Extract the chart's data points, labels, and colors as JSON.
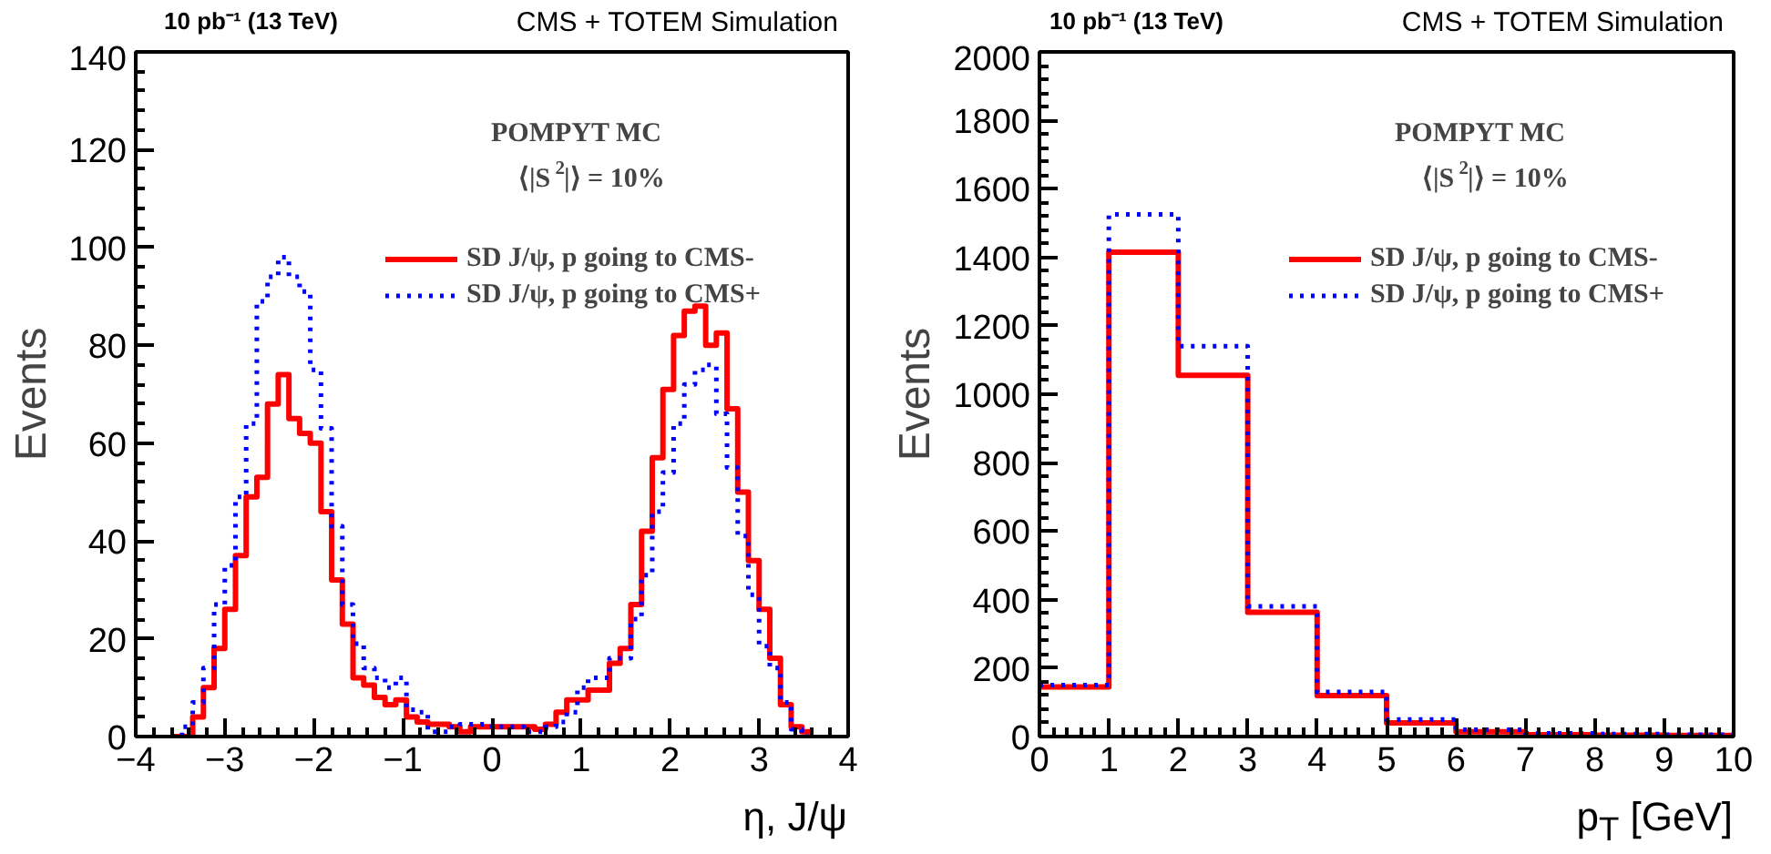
{
  "chart_data": [
    {
      "type": "histogram",
      "title": "10 pb⁻¹ (13 TeV)",
      "subtitle": "CMS + TOTEM Simulation",
      "xlabel": "η, J/ψ",
      "ylabel": "Events",
      "legend_title": "POMPYT MC",
      "annotations": [
        "⟨|S$^{2}$|⟩ = 10%"
      ],
      "bins": [
        -3.6,
        -3.48,
        -3.36,
        -3.24,
        -3.12,
        -3.0,
        -2.88,
        -2.76,
        -2.64,
        -2.52,
        -2.4,
        -2.28,
        -2.16,
        -2.04,
        -1.92,
        -1.8,
        -1.68,
        -1.56,
        -1.44,
        -1.32,
        -1.2,
        -1.08,
        -0.96,
        -0.84,
        -0.72,
        -0.6,
        -0.48,
        -0.36,
        -0.24,
        -0.12,
        0,
        0.12,
        0.24,
        0.36,
        0.48,
        0.6,
        0.72,
        0.84,
        0.96,
        1.08,
        1.2,
        1.32,
        1.44,
        1.56,
        1.68,
        1.8,
        1.92,
        2.04,
        2.16,
        2.28,
        2.4,
        2.52,
        2.64,
        2.76,
        2.88,
        3.0,
        3.12,
        3.24,
        3.36,
        3.48,
        3.6
      ],
      "series": [
        {
          "name": "SD J/ψ, p going to CMS-",
          "color": "#ff0000",
          "line_style": "solid",
          "values": [
            0,
            0,
            4,
            10,
            18,
            26,
            37,
            49,
            53,
            68,
            74,
            65,
            62,
            60,
            46,
            32,
            23,
            12,
            10.5,
            8,
            6.5,
            7.5,
            4,
            3,
            2.5,
            2.5,
            2,
            1,
            2,
            2,
            2,
            2,
            2,
            2,
            1.5,
            2.5,
            5,
            7.5,
            7.5,
            9.5,
            9.5,
            15,
            18,
            27,
            42,
            57,
            71,
            82,
            87,
            88,
            80,
            82.5,
            67,
            50,
            36,
            26,
            16,
            6.5,
            2,
            1
          ]
        },
        {
          "name": "SD J/ψ, p going to CMS+",
          "color": "#0000ff",
          "line_style": "dotted",
          "values": [
            0,
            2,
            7,
            14,
            27,
            35,
            49,
            64,
            89,
            94,
            98,
            94,
            91,
            75,
            63,
            43,
            27,
            19,
            14,
            12,
            10,
            12,
            5.5,
            5,
            1,
            1,
            2,
            2.5,
            2.5,
            2.5,
            2,
            2,
            2,
            1,
            1,
            2,
            3,
            5,
            10,
            12,
            12,
            16,
            16,
            24,
            33,
            46,
            54,
            64,
            72,
            75,
            76,
            66,
            55,
            41,
            29,
            18.5,
            14,
            7,
            1.5,
            0
          ]
        }
      ],
      "xlim": [
        -4,
        4
      ],
      "xticks": [
        -4,
        -3,
        -2,
        -1,
        0,
        1,
        2,
        3,
        4
      ],
      "ylim": [
        0,
        140
      ],
      "yticks": [
        0,
        20,
        40,
        60,
        80,
        100,
        120,
        140
      ],
      "grid": false,
      "legend": "top right"
    },
    {
      "type": "histogram",
      "title": "10 pb⁻¹ (13 TeV)",
      "subtitle": "CMS + TOTEM Simulation",
      "xlabel": "p$_{T}$ [GeV]",
      "ylabel": "Events",
      "legend_title": "POMPYT MC",
      "annotations": [
        "⟨|S$^{2}$|⟩ = 10%"
      ],
      "bins": [
        0,
        1,
        2,
        3,
        4,
        5,
        6,
        7,
        8,
        9,
        10
      ],
      "series": [
        {
          "name": "SD J/ψ, p going to CMS-",
          "color": "#ff0000",
          "line_style": "solid",
          "values": [
            145,
            1415,
            1055,
            363,
            120,
            40,
            14,
            5,
            4,
            3
          ]
        },
        {
          "name": "SD J/ψ, p going to CMS+",
          "color": "#0000ff",
          "line_style": "dotted",
          "values": [
            150,
            1525,
            1140,
            380,
            130,
            50,
            20,
            9,
            7,
            5
          ]
        }
      ],
      "xlim": [
        0,
        10
      ],
      "xticks": [
        0,
        1,
        2,
        3,
        4,
        5,
        6,
        7,
        8,
        9,
        10
      ],
      "ylim": [
        0,
        2000
      ],
      "yticks": [
        0,
        200,
        400,
        600,
        800,
        1000,
        1200,
        1400,
        1600,
        1800,
        2000
      ],
      "grid": false,
      "legend": "top right"
    }
  ]
}
